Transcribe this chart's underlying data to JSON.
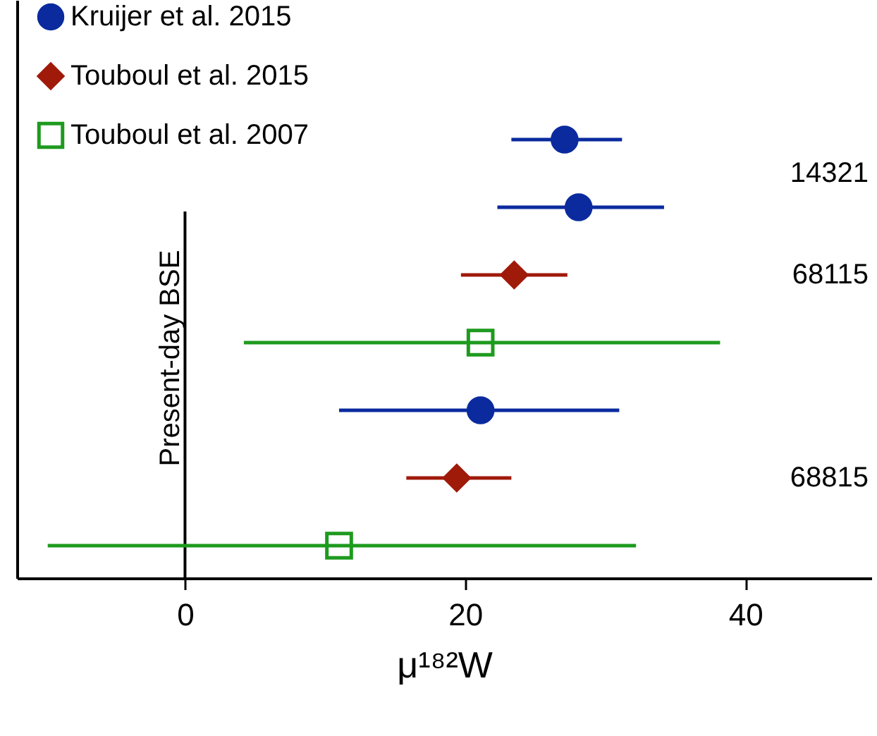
{
  "chart_data": {
    "type": "scatter",
    "orientation": "horizontal",
    "xlabel": "μ¹⁸²W",
    "categories": [
      null,
      null,
      null,
      null,
      null,
      null,
      null
    ],
    "series": [
      {
        "name": "Kruijer et al. 2015",
        "color": "#0a2a9e",
        "marker": "circle",
        "values": [
          27.1,
          28.1,
          null,
          null,
          21.1,
          null,
          null
        ],
        "errors": [
          [
            23.3,
            31.2
          ],
          [
            22.3,
            34.2
          ],
          null,
          null,
          [
            11,
            31
          ],
          null,
          null
        ]
      },
      {
        "name": "Touboul et al. 2015",
        "color": "#a01a0a",
        "marker": "diamond",
        "values": [
          null,
          null,
          23.5,
          null,
          null,
          19.4,
          null
        ],
        "errors": [
          null,
          null,
          [
            19.7,
            27.3
          ],
          null,
          null,
          [
            15.8,
            23.3
          ],
          null
        ]
      },
      {
        "name": "Touboul et al. 2007",
        "color": "#1e9a1e",
        "marker": "square",
        "values": [
          null,
          null,
          null,
          21.1,
          null,
          null,
          11
        ],
        "errors": [
          null,
          null,
          null,
          [
            4.2,
            38.2
          ],
          null,
          null,
          [
            -9.8,
            32.2
          ]
        ]
      }
    ],
    "annotations": [
      "14321",
      "68115",
      "68815"
    ],
    "ref_lines": [
      {
        "axis": "x",
        "value": 0,
        "label": "Present-day BSE",
        "color": "#000000"
      }
    ],
    "xlim": [
      -12,
      49
    ],
    "xticks": [
      0,
      20,
      40
    ],
    "grid": false,
    "legend": "top left",
    "tick_labels": "x"
  }
}
